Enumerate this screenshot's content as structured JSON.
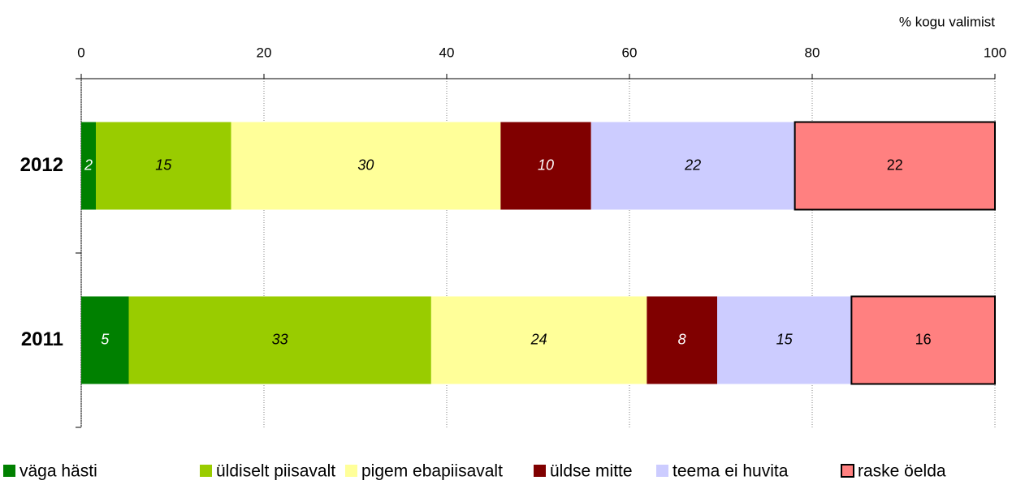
{
  "chart_data": {
    "type": "stacked-bar-horizontal",
    "axis_label": "% kogu valimist",
    "categories": [
      "2012",
      "2011"
    ],
    "series": [
      {
        "name": "väga hästi",
        "color": "#008000",
        "values": [
          1.6,
          5.2
        ],
        "value_labels": [
          "2",
          "5"
        ]
      },
      {
        "name": "üldiselt piisavalt",
        "color": "#99cc00",
        "values": [
          14.8,
          33.1
        ],
        "value_labels": [
          "15",
          "33"
        ]
      },
      {
        "name": "pigem ebapiisavalt",
        "color": "#ffff99",
        "values": [
          29.5,
          23.6
        ],
        "value_labels": [
          "30",
          "24"
        ]
      },
      {
        "name": "üldse mitte",
        "color": "#800000",
        "values": [
          9.9,
          7.7
        ],
        "value_labels": [
          "10",
          "8"
        ]
      },
      {
        "name": "teema ei huvita",
        "color": "#ccccff",
        "values": [
          22.3,
          14.7
        ],
        "value_labels": [
          "22",
          "15"
        ]
      },
      {
        "name": "raske öelda",
        "color": "#ff8080",
        "values": [
          21.9,
          15.7
        ],
        "value_labels": [
          "22",
          "16"
        ]
      }
    ],
    "xlim": [
      0,
      100
    ],
    "xticks": [
      0,
      20,
      40,
      60,
      80,
      100
    ],
    "grid": true
  }
}
